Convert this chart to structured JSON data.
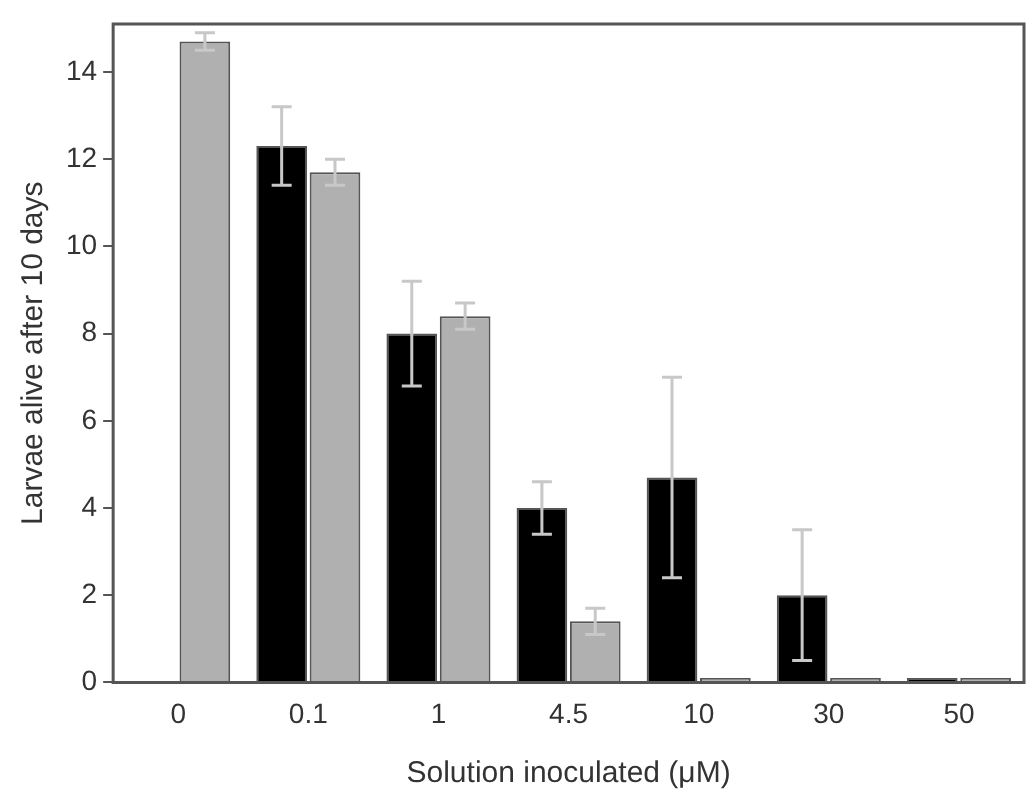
{
  "chart_data": {
    "type": "bar",
    "xlabel": "Solution inoculated (μM)",
    "ylabel": "Larvae alive after 10 days",
    "categories": [
      "0",
      "0.1",
      "1",
      "4.5",
      "10",
      "30",
      "50"
    ],
    "series": [
      {
        "color": "#000000",
        "values": [
          null,
          12.3,
          8.0,
          4.0,
          4.7,
          2.0,
          0.1
        ],
        "errors": [
          null,
          0.9,
          1.2,
          0.6,
          2.3,
          1.5,
          null
        ]
      },
      {
        "color": "#b0b0b0",
        "values": [
          14.7,
          11.7,
          8.4,
          1.4,
          0.1,
          0.1,
          0.1
        ],
        "errors": [
          0.2,
          0.3,
          0.3,
          0.3,
          null,
          null,
          null
        ]
      }
    ],
    "ylim": [
      0,
      15.1
    ],
    "yticks": [
      0,
      2,
      4,
      6,
      8,
      10,
      12,
      14
    ],
    "grid": false,
    "legend": false
  }
}
